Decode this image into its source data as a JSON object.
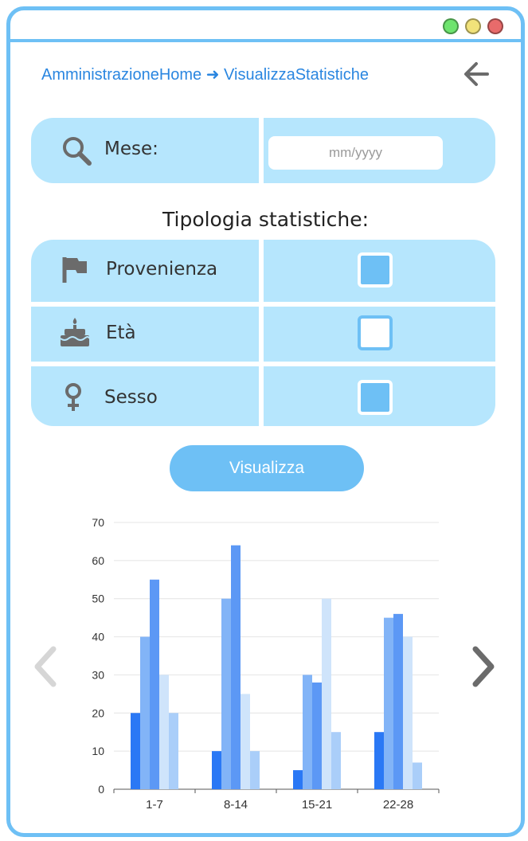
{
  "breadcrumb": "AmministrazioneHome ➜ VisualizzaStatistiche",
  "month_filter": {
    "label": "Mese:",
    "placeholder": "mm/yyyy"
  },
  "stats_heading": "Tipologia statistiche:",
  "options": [
    {
      "label": "Provenienza",
      "icon": "flag-icon",
      "checked": true
    },
    {
      "label": "Età",
      "icon": "cake-icon",
      "checked": false
    },
    {
      "label": "Sesso",
      "icon": "female-icon",
      "checked": true
    }
  ],
  "submit_label": "Visualizza",
  "colors": {
    "accent": "#6ec0f5",
    "panel": "#b6e6fd",
    "link": "#2a86e0",
    "icon": "#6b6b6b"
  },
  "chart_data": {
    "type": "bar",
    "categories": [
      "1-7",
      "8-14",
      "15-21",
      "22-28"
    ],
    "ylim": [
      0,
      70
    ],
    "yticks": [
      0,
      10,
      20,
      30,
      40,
      50,
      60,
      70
    ],
    "grid": true,
    "series": [
      {
        "values": [
          20,
          10,
          5,
          15
        ],
        "color": "#2a78f5"
      },
      {
        "values": [
          40,
          50,
          30,
          45
        ],
        "color": "#82b4f7"
      },
      {
        "values": [
          55,
          64,
          28,
          46
        ],
        "color": "#5c98f5"
      },
      {
        "values": [
          30,
          25,
          50,
          40
        ],
        "color": "#cfe4fb"
      },
      {
        "values": [
          20,
          10,
          15,
          7
        ],
        "color": "#aacef9"
      }
    ]
  }
}
